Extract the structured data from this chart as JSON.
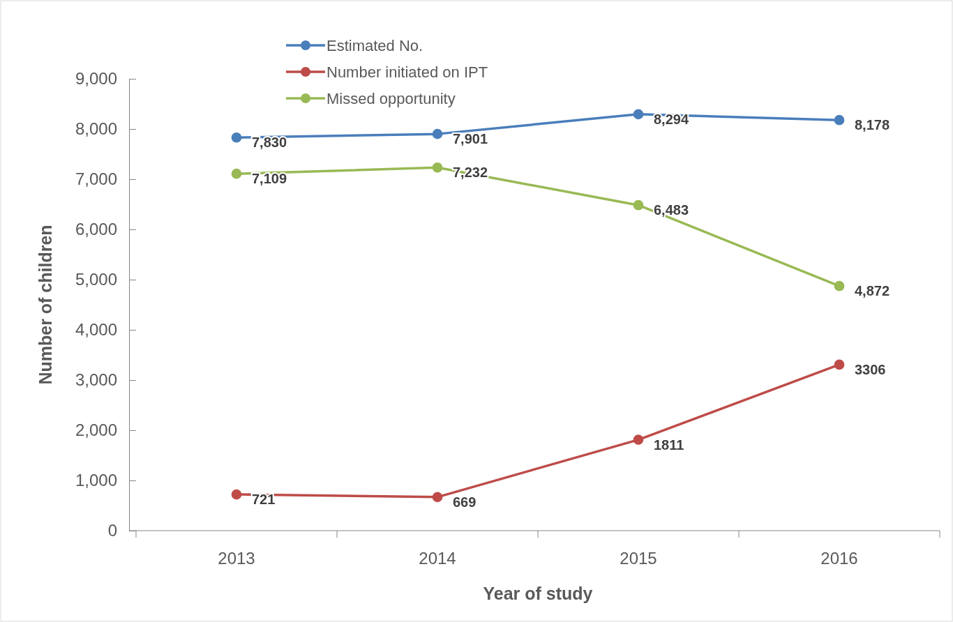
{
  "chart_data": {
    "type": "line",
    "xlabel": "Year of study",
    "ylabel": "Number of children",
    "categories": [
      "2013",
      "2014",
      "2015",
      "2016"
    ],
    "series": [
      {
        "name": "Estimated No.",
        "color": "#4a7ebb",
        "values": [
          7830,
          7901,
          8294,
          8178
        ],
        "value_labels": [
          "7,830",
          "7,901",
          "8,294",
          "8,178"
        ]
      },
      {
        "name": "Number initiated on IPT",
        "color": "#be4b48",
        "values": [
          721,
          669,
          1811,
          3306
        ],
        "value_labels": [
          "721",
          "669",
          "1811",
          "3306"
        ]
      },
      {
        "name": "Missed opportunity",
        "color": "#98b954",
        "values": [
          7109,
          7232,
          6483,
          4872
        ],
        "value_labels": [
          "7,109",
          "7,232",
          "6,483",
          "4,872"
        ]
      }
    ],
    "ylim": [
      0,
      9000
    ],
    "yticks": [
      0,
      {
        "value": 1000,
        "label": "1,000"
      },
      {
        "value": 2000,
        "label": "2,000"
      },
      {
        "value": 3000,
        "label": "3,000"
      },
      {
        "value": 4000,
        "label": "4,000"
      },
      {
        "value": 5000,
        "label": "5,000"
      },
      {
        "value": 6000,
        "label": "6,000"
      },
      {
        "value": 7000,
        "label": "7,000"
      },
      {
        "value": 8000,
        "label": "8,000"
      },
      {
        "value": 9000,
        "label": "9,000"
      }
    ],
    "grid": false,
    "legend": "top",
    "marker": "circle",
    "line_style": "solid"
  }
}
